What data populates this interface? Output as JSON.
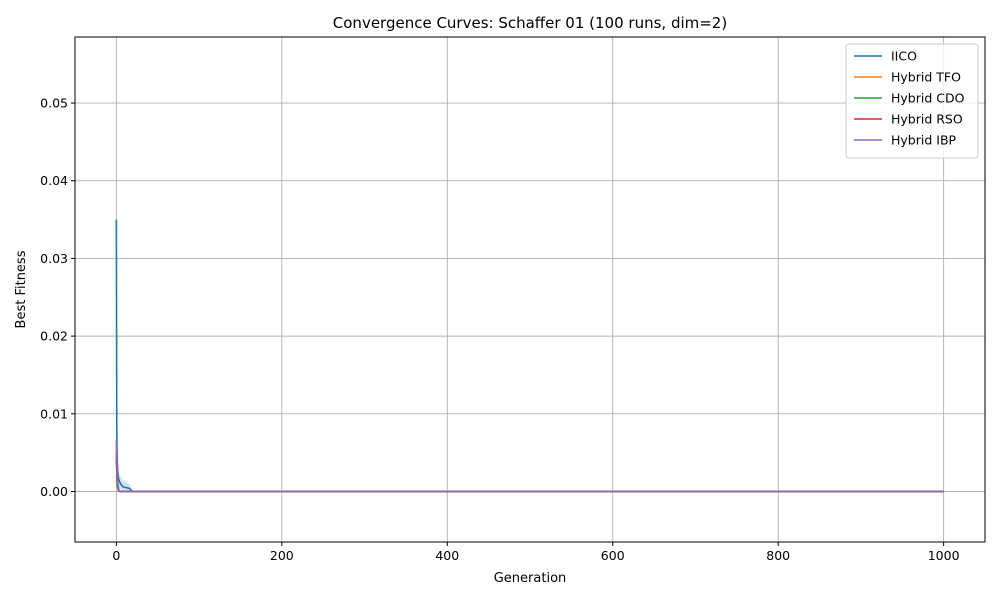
{
  "chart_data": {
    "type": "line",
    "title": "Convergence Curves: Schaffer 01 (100 runs, dim=2)",
    "xlabel": "Generation",
    "ylabel": "Best Fitness",
    "xlim": [
      -50,
      1050
    ],
    "ylim": [
      -0.0065,
      0.0585
    ],
    "xticks": [
      0,
      200,
      400,
      600,
      800,
      1000
    ],
    "xtick_labels": [
      "0",
      "200",
      "400",
      "600",
      "800",
      "1000"
    ],
    "yticks": [
      0.0,
      0.01,
      0.02,
      0.03,
      0.04,
      0.05
    ],
    "ytick_labels": [
      "0.00",
      "0.01",
      "0.02",
      "0.03",
      "0.04",
      "0.05"
    ],
    "grid": true,
    "legend_position": "top-right",
    "series": [
      {
        "name": "IICO",
        "color": "#1f77b4",
        "x": [
          0,
          0.5,
          1,
          2,
          3,
          5,
          8,
          12,
          16,
          18,
          20,
          30,
          100,
          1000
        ],
        "values": [
          0.035,
          0.008,
          0.004,
          0.002,
          0.0015,
          0.001,
          0.0006,
          0.0005,
          0.0004,
          0.0001,
          3e-05,
          1e-05,
          0.0,
          0.0
        ],
        "band_upper": [
          0.035,
          0.01,
          0.005,
          0.003,
          0.0025,
          0.002,
          0.0015,
          0.0012,
          0.001,
          0.0005,
          0.0001,
          3e-05,
          0.0,
          0.0
        ],
        "band_lower": [
          0.035,
          0.0045,
          0.0025,
          0.001,
          0.0006,
          0.0003,
          0.0001,
          0.0,
          0.0,
          0.0,
          0.0,
          0.0,
          0.0,
          0.0
        ]
      },
      {
        "name": "Hybrid TFO",
        "color": "#ff7f0e",
        "x": [
          0,
          0.5,
          1,
          2,
          3,
          5,
          1000
        ],
        "values": [
          0.0045,
          0.003,
          0.0015,
          0.0004,
          8e-05,
          0.0,
          0.0
        ]
      },
      {
        "name": "Hybrid CDO",
        "color": "#2ca02c",
        "x": [
          0,
          0.5,
          1,
          2,
          3,
          5,
          1000
        ],
        "values": [
          0.004,
          0.0025,
          0.001,
          0.0003,
          5e-05,
          0.0,
          0.0
        ]
      },
      {
        "name": "Hybrid RSO",
        "color": "#d62728",
        "x": [
          0,
          0.5,
          1,
          2,
          3,
          5,
          1000
        ],
        "values": [
          0.005,
          0.003,
          0.0015,
          0.0005,
          0.0001,
          0.0,
          0.0
        ]
      },
      {
        "name": "Hybrid IBP",
        "color": "#9467bd",
        "x": [
          0,
          0.5,
          1,
          2,
          3,
          5,
          1000
        ],
        "values": [
          0.0065,
          0.004,
          0.0022,
          0.0008,
          0.0002,
          0.0,
          0.0
        ]
      }
    ]
  }
}
